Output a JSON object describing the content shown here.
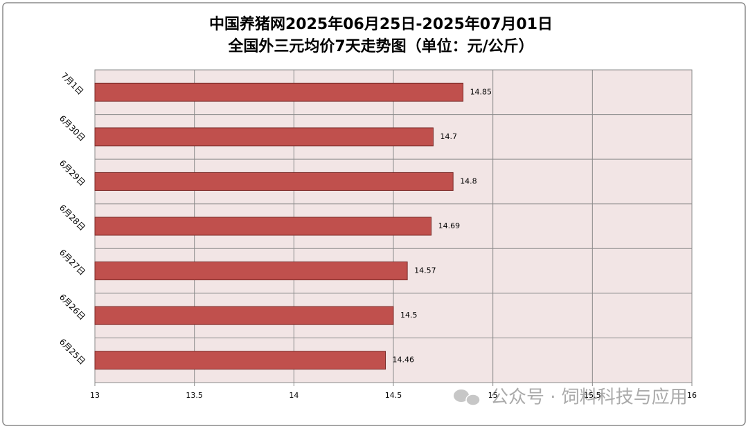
{
  "chart_data": {
    "type": "hbar",
    "title": "中国养猪网2025年06月25日-2025年07月01日",
    "subtitle": "全国外三元均价7天走势图（单位：元/公斤）",
    "categories": [
      "7月1日",
      "6月30日",
      "6月29日",
      "6月28日",
      "6月27日",
      "6月26日",
      "6月25日"
    ],
    "values": [
      14.85,
      14.7,
      14.8,
      14.69,
      14.57,
      14.5,
      14.46
    ],
    "color": "#c0504d",
    "xlim": [
      13,
      16
    ],
    "xticks": [
      13,
      13.5,
      14,
      14.5,
      15,
      15.5,
      16
    ],
    "grid": true
  },
  "watermark": "公众号 · 饲料科技与应用"
}
